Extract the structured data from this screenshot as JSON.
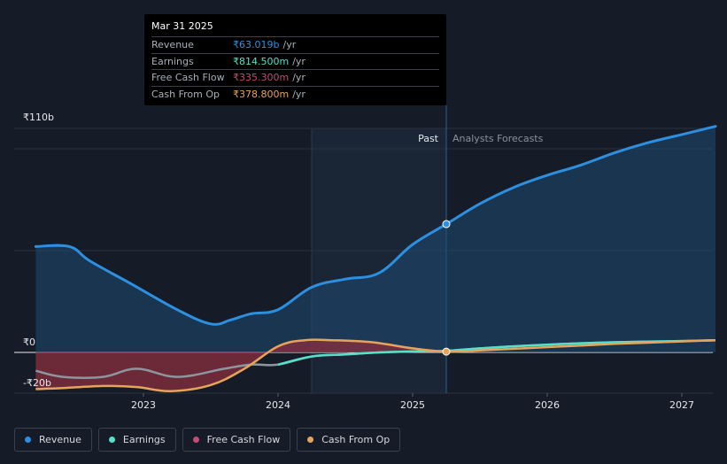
{
  "tooltip": {
    "date": "Mar 31 2025",
    "rows": [
      {
        "label": "Revenue",
        "value": "₹63.019b",
        "unit": "/yr",
        "color": "#2d8fe0"
      },
      {
        "label": "Earnings",
        "value": "₹814.500m",
        "unit": "/yr",
        "color": "#55e0c8"
      },
      {
        "label": "Free Cash Flow",
        "value": "₹335.300m",
        "unit": "/yr",
        "color": "#c44a7a"
      },
      {
        "label": "Cash From Op",
        "value": "₹378.800m",
        "unit": "/yr",
        "color": "#e6a45a"
      }
    ]
  },
  "legend": [
    {
      "label": "Revenue",
      "color": "#2d8fe0"
    },
    {
      "label": "Earnings",
      "color": "#55e0c8"
    },
    {
      "label": "Free Cash Flow",
      "color": "#c44a7a"
    },
    {
      "label": "Cash From Op",
      "color": "#e6a45a"
    }
  ],
  "chart_data": {
    "type": "line",
    "title": "",
    "xlabel": "",
    "ylabel": "",
    "ylim": [
      -20,
      110
    ],
    "y_tick_labels": [
      "₹110b",
      "₹0",
      "-₹20b"
    ],
    "y_ticks": [
      110,
      0,
      -20
    ],
    "x_tick_labels": [
      "2023",
      "2024",
      "2025",
      "2026",
      "2027"
    ],
    "x_ticks": [
      2023,
      2024,
      2025,
      2026,
      2027
    ],
    "xlim": [
      2022.2,
      2027.25
    ],
    "past_label": "Past",
    "forecast_label": "Analysts Forecasts",
    "past_start": 2024.25,
    "divider": 2025.25,
    "series": [
      {
        "name": "Revenue",
        "color": "#2d8fe0",
        "points": [
          [
            2022.2,
            52
          ],
          [
            2022.45,
            52
          ],
          [
            2022.6,
            45
          ],
          [
            2022.9,
            34
          ],
          [
            2023.25,
            21
          ],
          [
            2023.5,
            14
          ],
          [
            2023.65,
            16
          ],
          [
            2023.8,
            19
          ],
          [
            2024.0,
            21
          ],
          [
            2024.25,
            32
          ],
          [
            2024.5,
            36
          ],
          [
            2024.75,
            39
          ],
          [
            2025.0,
            53
          ],
          [
            2025.25,
            63
          ],
          [
            2025.5,
            73
          ],
          [
            2025.75,
            81
          ],
          [
            2026.0,
            87
          ],
          [
            2026.25,
            92
          ],
          [
            2026.5,
            98
          ],
          [
            2026.75,
            103
          ],
          [
            2027.0,
            107
          ],
          [
            2027.25,
            111
          ]
        ]
      },
      {
        "name": "Earnings",
        "color": "#55e0c8",
        "points": [
          [
            2022.2,
            -9
          ],
          [
            2022.4,
            -12
          ],
          [
            2022.7,
            -12
          ],
          [
            2022.95,
            -8
          ],
          [
            2023.25,
            -12
          ],
          [
            2023.6,
            -8
          ],
          [
            2023.8,
            -6
          ],
          [
            2024.0,
            -6
          ],
          [
            2024.25,
            -2
          ],
          [
            2024.5,
            -1
          ],
          [
            2024.75,
            0
          ],
          [
            2025.0,
            0.5
          ],
          [
            2025.25,
            0.8
          ],
          [
            2025.5,
            2
          ],
          [
            2025.75,
            3
          ],
          [
            2026.0,
            3.8
          ],
          [
            2026.25,
            4.5
          ],
          [
            2026.5,
            5
          ],
          [
            2026.75,
            5.3
          ],
          [
            2027.0,
            5.6
          ],
          [
            2027.25,
            6
          ]
        ]
      },
      {
        "name": "Free Cash Flow",
        "color": "#c44a7a",
        "points": [
          [
            2022.2,
            -18
          ],
          [
            2022.4,
            -17.5
          ],
          [
            2022.7,
            -16.5
          ],
          [
            2022.95,
            -17
          ],
          [
            2023.2,
            -19
          ],
          [
            2023.5,
            -16
          ],
          [
            2023.75,
            -8
          ],
          [
            2024.0,
            3
          ],
          [
            2024.2,
            6
          ],
          [
            2024.4,
            6
          ],
          [
            2024.7,
            5
          ],
          [
            2025.0,
            2
          ],
          [
            2025.25,
            0.3
          ]
        ]
      },
      {
        "name": "Cash From Op",
        "color": "#e6a45a",
        "points": [
          [
            2022.2,
            -18
          ],
          [
            2022.4,
            -17.5
          ],
          [
            2022.7,
            -16.5
          ],
          [
            2022.95,
            -17
          ],
          [
            2023.2,
            -19
          ],
          [
            2023.5,
            -16
          ],
          [
            2023.75,
            -8
          ],
          [
            2024.0,
            3
          ],
          [
            2024.2,
            6
          ],
          [
            2024.4,
            6
          ],
          [
            2024.7,
            5
          ],
          [
            2025.0,
            2
          ],
          [
            2025.25,
            0.4
          ],
          [
            2025.5,
            1
          ],
          [
            2025.75,
            1.8
          ],
          [
            2026.0,
            2.6
          ],
          [
            2026.25,
            3.4
          ],
          [
            2026.5,
            4.2
          ],
          [
            2026.75,
            4.8
          ],
          [
            2027.0,
            5.4
          ],
          [
            2027.25,
            6
          ]
        ]
      }
    ],
    "highlight_x": 2025.25,
    "highlight_values": {
      "Revenue": 63.019,
      "Earnings": 0.8145,
      "Free Cash Flow": 0.3353,
      "Cash From Op": 0.3788
    }
  }
}
